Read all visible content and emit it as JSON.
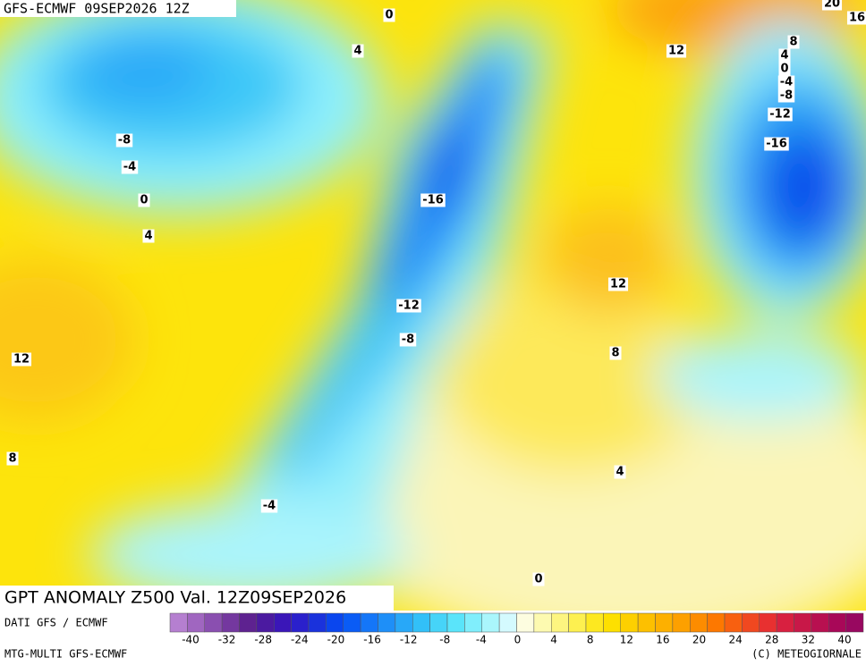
{
  "header": "GFS-ECMWF 09SEP2026 12Z",
  "title": "GPT ANOMALY Z500 Val. 12Z09SEP2026",
  "source": "DATI GFS / ECMWF",
  "model": "MTG-MULTI GFS-ECMWF",
  "copyright": "(C) METEOGIORNALE",
  "contour_labels": [
    "0",
    "4",
    "-8",
    "-4",
    "0",
    "4",
    "12",
    "8",
    "-16",
    "-12",
    "-8",
    "-4",
    "0",
    "12",
    "20",
    "16",
    "8",
    "4",
    "0",
    "-4",
    "-8",
    "-12",
    "-16",
    "12",
    "8",
    "4"
  ],
  "colorbar": {
    "ticks": [
      -40,
      -32,
      -28,
      -24,
      -20,
      -16,
      -12,
      -8,
      -4,
      0,
      4,
      8,
      12,
      16,
      20,
      24,
      28,
      32,
      40
    ],
    "colors": [
      "#b57fd0",
      "#a066c0",
      "#8a4fb0",
      "#74389f",
      "#5e2290",
      "#4b1aa0",
      "#3a16b8",
      "#2a20cc",
      "#1a32dc",
      "#0a46ee",
      "#0a5cf5",
      "#1476f8",
      "#1e8ff8",
      "#28a8f8",
      "#32c0f8",
      "#46d4f8",
      "#5ae4fa",
      "#80eefc",
      "#aaf6fc",
      "#d4fafe",
      "#fdfde0",
      "#fdfab0",
      "#fdf580",
      "#fdf050",
      "#fde820",
      "#fde000",
      "#fdd000",
      "#fdc000",
      "#fdb000",
      "#fda000",
      "#fd8c00",
      "#fd7800",
      "#f86010",
      "#f04820",
      "#e83030",
      "#d82040",
      "#c81848",
      "#b81050",
      "#a80858",
      "#980860"
    ]
  }
}
